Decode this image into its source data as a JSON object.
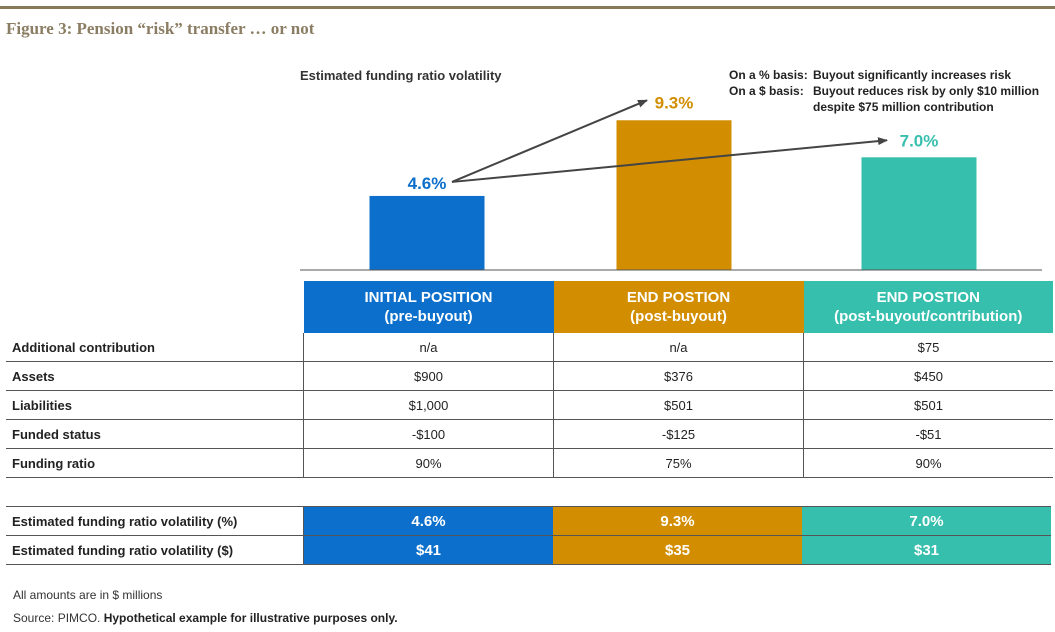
{
  "figure_title": "Figure 3: Pension “risk” transfer … or not",
  "chart_subtitle": "Estimated funding ratio volatility",
  "notes": [
    {
      "label": "On a % basis:",
      "text": "Buyout significantly increases risk"
    },
    {
      "label": "On a $ basis:",
      "text": "Buyout reduces risk by only $10 million despite $75 million contribution"
    }
  ],
  "colors": {
    "blue": "#0b6fcb",
    "gold": "#d28e00",
    "teal": "#37bfae",
    "rule": "#8a7a5c"
  },
  "chart_data": {
    "type": "bar",
    "title": "",
    "categories": [
      "INITIAL POSITION (pre-buyout)",
      "END POSTION (post-buyout)",
      "END POSTION (post-buyout/contribution)"
    ],
    "values": [
      4.6,
      9.3,
      7.0
    ],
    "data_labels": [
      "4.6%",
      "9.3%",
      "7.0%"
    ],
    "annotations": [
      "arrow from 4.6% to 9.3%",
      "arrow from 4.6% to 7.0%"
    ],
    "ylim": [
      0,
      12
    ],
    "grid": false,
    "legend": "none"
  },
  "table": {
    "headers": [
      {
        "line1": "INITIAL POSITION",
        "line2": "(pre-buyout)"
      },
      {
        "line1": "END POSTION",
        "line2": "(post-buyout)"
      },
      {
        "line1": "END POSTION",
        "line2": "(post-buyout/contribution)"
      }
    ],
    "rows": [
      {
        "label": "Additional contribution",
        "values": [
          "n/a",
          "n/a",
          "$75"
        ]
      },
      {
        "label": "Assets",
        "values": [
          "$900",
          "$376",
          "$450"
        ]
      },
      {
        "label": "Liabilities",
        "values": [
          "$1,000",
          "$501",
          "$501"
        ]
      },
      {
        "label": "Funded status",
        "values": [
          "-$100",
          "-$125",
          "-$51"
        ]
      },
      {
        "label": "Funding ratio",
        "values": [
          "90%",
          "75%",
          "90%"
        ]
      }
    ],
    "volatility_rows": [
      {
        "label": "Estimated funding ratio volatility (%)",
        "values": [
          "4.6%",
          "9.3%",
          "7.0%"
        ]
      },
      {
        "label": "Estimated funding ratio volatility ($)",
        "values": [
          "$41",
          "$35",
          "$31"
        ]
      }
    ]
  },
  "footnotes": {
    "amounts": "All amounts are in $ millions",
    "source_prefix": "Source: PIMCO.",
    "source_bold": "Hypothetical example for illustrative purposes only."
  }
}
